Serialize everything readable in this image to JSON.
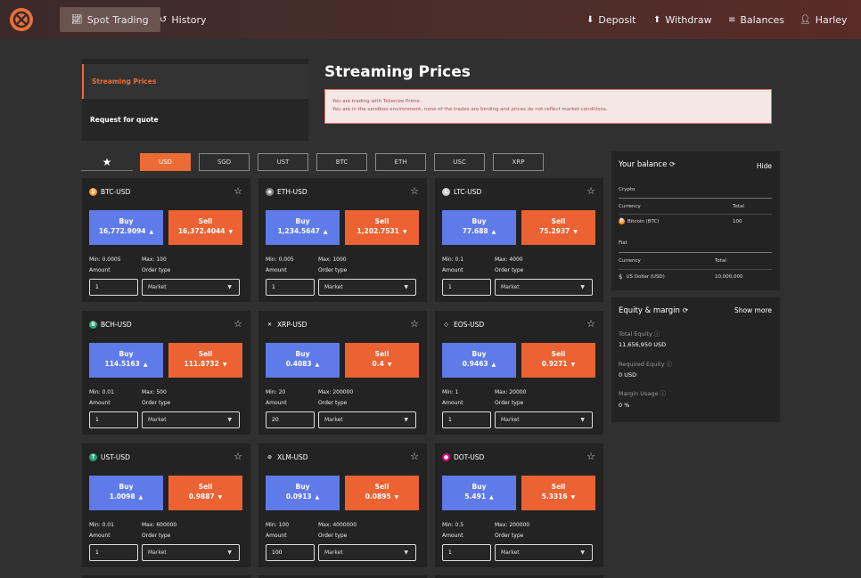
{
  "nav": {
    "spot_trading": "Spot Trading",
    "history": "History",
    "deposit": "Deposit",
    "withdraw": "Withdraw",
    "balances": "Balances",
    "user": "Harley"
  },
  "sidebar": {
    "items": [
      {
        "label": "Streaming Prices"
      },
      {
        "label": "Request for quote"
      }
    ]
  },
  "main": {
    "title": "Streaming Prices",
    "alert_line1": "You are trading with Tokenize Prime.",
    "alert_line2": "You are in the sandbox environment, none of the trades are binding and prices do not reflect market conditions."
  },
  "currency_tabs": [
    "USD",
    "SGD",
    "UST",
    "BTC",
    "ETH",
    "USC",
    "XRP"
  ],
  "active_tab": "USD",
  "labels": {
    "buy": "Buy",
    "sell": "Sell",
    "amount": "Amount",
    "order_type": "Order type",
    "market": "Market"
  },
  "pairs": [
    {
      "symbol": "BTC-USD",
      "icon": "bitcoin-icon",
      "color": "#f7931a",
      "glyph": "₿",
      "buy": "16,772.9094",
      "sell": "16,372.4044",
      "min": "Min: 0.0005",
      "max": "Max: 100",
      "amount": "1"
    },
    {
      "symbol": "ETH-USD",
      "icon": "ethereum-icon",
      "color": "#888888",
      "glyph": "◆",
      "buy": "1,234.5647",
      "sell": "1,202.7531",
      "min": "Min: 0.005",
      "max": "Max: 1000",
      "amount": "1"
    },
    {
      "symbol": "LTC-USD",
      "icon": "litecoin-icon",
      "color": "#cccccc",
      "glyph": "Ł",
      "buy": "77.688",
      "sell": "75.2937",
      "min": "Min: 0.1",
      "max": "Max: 4000",
      "amount": "1"
    },
    {
      "symbol": "BCH-USD",
      "icon": "bitcoin-cash-icon",
      "color": "#2fa87a",
      "glyph": "B",
      "buy": "114.5163",
      "sell": "111.8732",
      "min": "Min: 0.01",
      "max": "Max: 500",
      "amount": "1"
    },
    {
      "symbol": "XRP-USD",
      "icon": "xrp-icon",
      "color": "#232323",
      "glyph": "✕",
      "buy": "0.4083",
      "sell": "0.4",
      "min": "Min: 20",
      "max": "Max: 200000",
      "amount": "20"
    },
    {
      "symbol": "EOS-USD",
      "icon": "eos-icon",
      "color": "#232323",
      "glyph": "◇",
      "buy": "0.9463",
      "sell": "0.9271",
      "min": "Min: 1",
      "max": "Max: 20000",
      "amount": "1"
    },
    {
      "symbol": "UST-USD",
      "icon": "tether-icon",
      "color": "#26a17b",
      "glyph": "T",
      "buy": "1.0098",
      "sell": "0.9887",
      "min": "Min: 0.01",
      "max": "Max: 600000",
      "amount": "1"
    },
    {
      "symbol": "XLM-USD",
      "icon": "stellar-icon",
      "color": "#232323",
      "glyph": "⊘",
      "buy": "0.0913",
      "sell": "0.0895",
      "min": "Min: 100",
      "max": "Max: 4000000",
      "amount": "100"
    },
    {
      "symbol": "DOT-USD",
      "icon": "polkadot-icon",
      "color": "#e6007a",
      "glyph": "●",
      "buy": "5.491",
      "sell": "5.3316",
      "min": "Min: 0.5",
      "max": "Max: 200000",
      "amount": "1"
    }
  ],
  "balance": {
    "title": "Your balance",
    "hide": "Hide",
    "crypto_label": "Crypto",
    "currency_col": "Currency",
    "total_col": "Total",
    "crypto_row_name": "Bitcoin (BTC)",
    "crypto_row_total": "100",
    "fiat_label": "Fiat",
    "fiat_row_name": "US Dollar (USD)",
    "fiat_row_total": "10,000,000"
  },
  "equity": {
    "title": "Equity & margin",
    "show_more": "Show more",
    "total_equity_label": "Total Equity",
    "total_equity_value": "11,656,950 USD",
    "required_equity_label": "Required Equity",
    "required_equity_value": "0 USD",
    "margin_usage_label": "Margin Usage",
    "margin_usage_value": "0 %"
  },
  "colors": {
    "accent": "#ec6c36",
    "buy": "#5f7be9",
    "sell": "#ec6232"
  }
}
